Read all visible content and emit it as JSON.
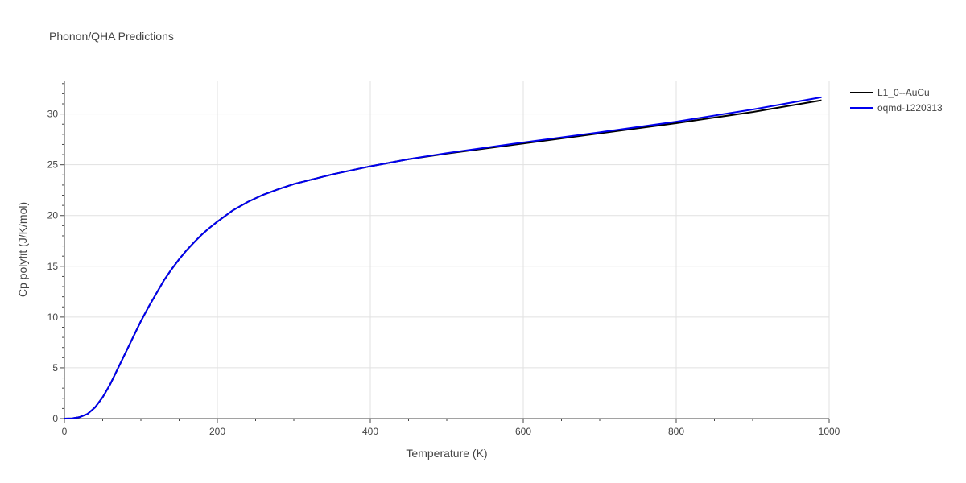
{
  "chart_data": {
    "type": "line",
    "title": "Phonon/QHA Predictions",
    "xlabel": "Temperature (K)",
    "ylabel": "Cp polyfit (J/K/mol)",
    "xlim": [
      0,
      1000
    ],
    "ylim": [
      0,
      33.3
    ],
    "xticks": [
      0,
      200,
      400,
      600,
      800,
      1000
    ],
    "yticks": [
      0,
      5,
      10,
      15,
      20,
      25,
      30
    ],
    "grid": true,
    "legend": "top-right, outside plot",
    "series": [
      {
        "name": "L1_0--AuCu",
        "color": "#000000",
        "x": [
          0,
          10,
          20,
          30,
          40,
          50,
          60,
          70,
          80,
          90,
          100,
          110,
          120,
          130,
          140,
          150,
          160,
          170,
          180,
          190,
          200,
          220,
          240,
          260,
          280,
          300,
          350,
          400,
          450,
          500,
          600,
          700,
          800,
          900,
          990
        ],
        "y": [
          0,
          0.02,
          0.15,
          0.45,
          1.1,
          2.1,
          3.4,
          4.95,
          6.5,
          8.05,
          9.6,
          11.0,
          12.3,
          13.6,
          14.7,
          15.7,
          16.6,
          17.4,
          18.15,
          18.8,
          19.4,
          20.5,
          21.35,
          22.05,
          22.6,
          23.1,
          24.05,
          24.85,
          25.55,
          26.1,
          27.1,
          28.1,
          29.1,
          30.2,
          31.35
        ]
      },
      {
        "name": "oqmd-1220313",
        "color": "#0000ee",
        "x": [
          0,
          10,
          20,
          30,
          40,
          50,
          60,
          70,
          80,
          90,
          100,
          110,
          120,
          130,
          140,
          150,
          160,
          170,
          180,
          190,
          200,
          220,
          240,
          260,
          280,
          300,
          350,
          400,
          450,
          500,
          600,
          700,
          800,
          900,
          990
        ],
        "y": [
          0,
          0.02,
          0.15,
          0.45,
          1.1,
          2.1,
          3.4,
          4.95,
          6.5,
          8.05,
          9.6,
          11.0,
          12.3,
          13.6,
          14.7,
          15.7,
          16.6,
          17.4,
          18.15,
          18.8,
          19.4,
          20.5,
          21.35,
          22.05,
          22.6,
          23.1,
          24.05,
          24.85,
          25.55,
          26.15,
          27.2,
          28.2,
          29.25,
          30.45,
          31.65
        ]
      }
    ]
  }
}
